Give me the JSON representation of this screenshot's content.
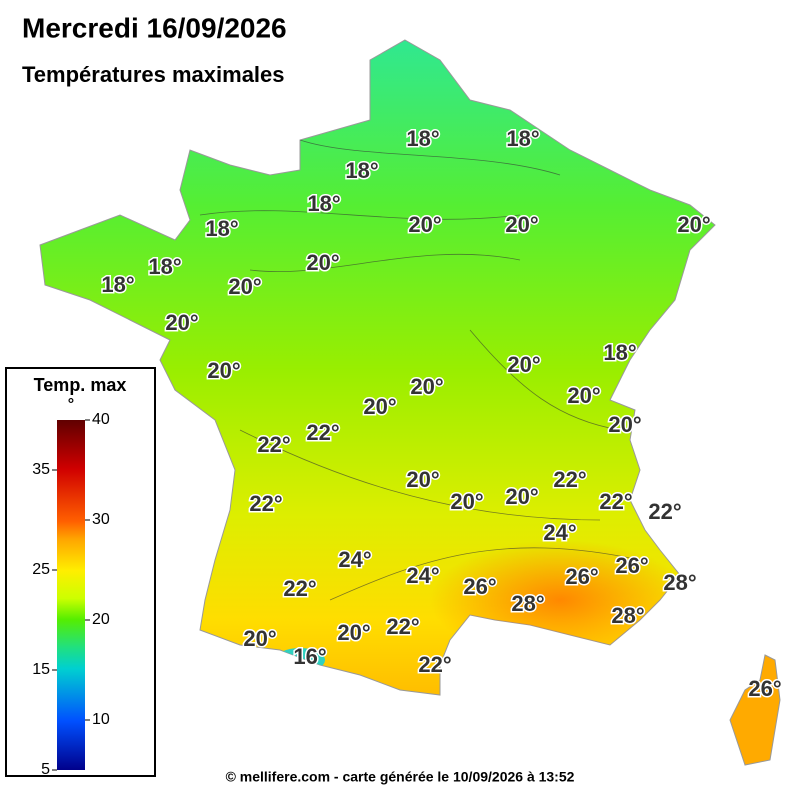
{
  "header": {
    "title": "Mercredi 16/09/2026",
    "subtitle": "Températures maximales"
  },
  "map": {
    "labels": [
      "18°",
      "18°",
      "18°",
      "18°",
      "20°",
      "20°",
      "20°",
      "18°",
      "18°",
      "20°",
      "18°",
      "20°",
      "20°",
      "20°",
      "18°",
      "20°",
      "20°",
      "20°",
      "20°",
      "20°",
      "22°",
      "22°",
      "20°",
      "22°",
      "20°",
      "20°",
      "22°",
      "22°",
      "22°",
      "24°",
      "24°",
      "24°",
      "26°",
      "26°",
      "26°",
      "28°",
      "22°",
      "28°",
      "28°",
      "22°",
      "20°",
      "20°",
      "16°",
      "22°",
      "26°"
    ]
  },
  "legend": {
    "title": "Temp. max",
    "unit": "°",
    "range": [
      5,
      40
    ],
    "ticks": [
      5,
      10,
      15,
      20,
      25,
      30,
      35,
      40
    ]
  },
  "footer": "© mellifere.com - carte générée le 10/09/2026 à 13:52"
}
